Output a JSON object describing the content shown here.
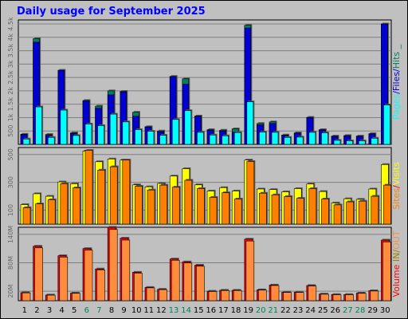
{
  "title": "Daily usage for September 2025",
  "colors": {
    "hits": "#00805c",
    "files": "#0000d0",
    "pages": "#00ffff",
    "visits": "#ffff00",
    "sites": "#ff8000",
    "kbytes_in": "#ff0000",
    "kbytes_out": "#ff8c3c",
    "weekend_day": "#00805c",
    "weekday": "#000000"
  },
  "chart_data": [
    {
      "type": "bar",
      "title": "Daily usage for September 2025",
      "legend": [
        {
          "name": "Pages",
          "color": "#00ffff"
        },
        {
          "name": "Files",
          "color": "#0000d0"
        },
        {
          "name": "Hits",
          "color": "#00805c"
        }
      ],
      "ylabel_parts": [
        "Pages",
        "/",
        "Files",
        "/",
        "Hits",
        "_"
      ],
      "y_ticks": [
        "500",
        "1k",
        "1.5k",
        "2k",
        "2.5k",
        "3k",
        "3.5k",
        "4k",
        "4.5k"
      ],
      "ylim": [
        0,
        4650
      ],
      "x": [
        "1",
        "2",
        "3",
        "4",
        "5",
        "6",
        "7",
        "8",
        "9",
        "10",
        "11",
        "12",
        "13",
        "14",
        "15",
        "16",
        "17",
        "18",
        "19",
        "20",
        "21",
        "22",
        "23",
        "24",
        "25",
        "26",
        "27",
        "28",
        "29",
        "30"
      ],
      "weekend_days": [
        "6",
        "7",
        "13",
        "14",
        "20",
        "21",
        "27",
        "28"
      ],
      "series": [
        {
          "name": "Hits",
          "values": [
            380,
            3950,
            370,
            2770,
            430,
            1640,
            1430,
            2000,
            1980,
            1200,
            660,
            500,
            2540,
            2450,
            1060,
            550,
            530,
            580,
            4450,
            780,
            840,
            350,
            430,
            1010,
            550,
            310,
            330,
            310,
            400,
            4500
          ]
        },
        {
          "name": "Files",
          "values": [
            360,
            3820,
            340,
            2760,
            410,
            1620,
            1350,
            1850,
            1960,
            1050,
            650,
            470,
            2530,
            2250,
            1050,
            530,
            500,
            450,
            4350,
            730,
            780,
            340,
            420,
            1000,
            540,
            300,
            320,
            300,
            390,
            4500
          ]
        },
        {
          "name": "Pages",
          "values": [
            200,
            1400,
            260,
            1280,
            330,
            760,
            700,
            1130,
            840,
            550,
            490,
            340,
            930,
            1260,
            450,
            350,
            320,
            440,
            1590,
            460,
            450,
            260,
            270,
            450,
            430,
            150,
            130,
            130,
            230,
            1470
          ]
        }
      ]
    },
    {
      "type": "bar",
      "legend": [
        {
          "name": "Sites",
          "color": "#ff8000"
        },
        {
          "name": "Visits",
          "color": "#ffff00"
        }
      ],
      "ylabel_parts": [
        "Sites",
        "/",
        "Visits"
      ],
      "y_ticks": [
        "100",
        "300",
        "500"
      ],
      "ylim": [
        0,
        550
      ],
      "series": [
        {
          "name": "Visits",
          "values": [
            140,
            218,
            200,
            303,
            290,
            525,
            448,
            468,
            460,
            282,
            268,
            292,
            345,
            398,
            282,
            238,
            262,
            238,
            460,
            252,
            248,
            232,
            255,
            288,
            234,
            152,
            182,
            178,
            252,
            428
          ]
        },
        {
          "name": "Sites",
          "values": [
            118,
            145,
            175,
            290,
            260,
            530,
            388,
            412,
            460,
            272,
            245,
            280,
            265,
            315,
            255,
            192,
            225,
            180,
            450,
            222,
            210,
            198,
            185,
            255,
            180,
            138,
            160,
            165,
            200,
            280
          ]
        }
      ]
    },
    {
      "type": "bar",
      "legend": [
        {
          "name": "Volume",
          "color": "#ff0000"
        },
        {
          "name": "IN",
          "color": "#ff0000"
        },
        {
          "name": "OUT",
          "color": "#ff8c3c"
        }
      ],
      "ylabel_parts": [
        "Volume",
        "IN",
        "/",
        "OUT"
      ],
      "y_ticks": [
        "20M",
        "80M",
        "140M"
      ],
      "ylim": [
        0,
        155
      ],
      "series": [
        {
          "name": "Volume",
          "values": [
            17,
            115,
            12,
            95,
            16,
            110,
            67,
            155,
            132,
            60,
            28,
            24,
            88,
            82,
            75,
            20,
            22,
            22,
            130,
            23,
            33,
            18,
            18,
            32,
            14,
            13,
            13,
            16,
            21,
            128
          ]
        }
      ]
    }
  ]
}
